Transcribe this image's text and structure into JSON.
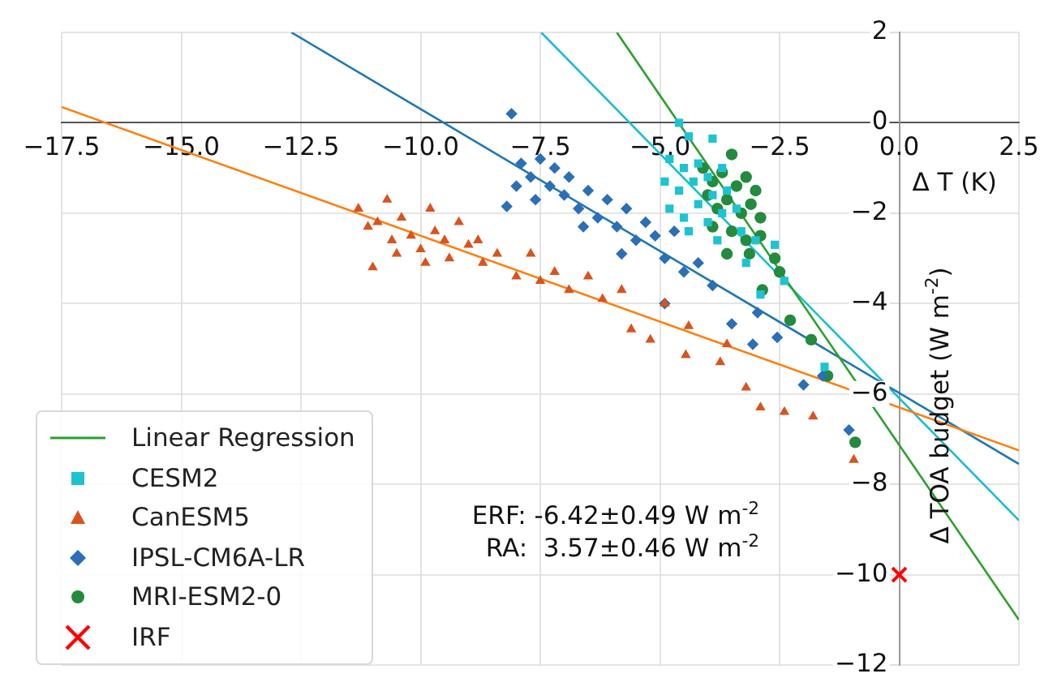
{
  "chart_data": {
    "type": "scatter",
    "xlabel": "Δ T (K)",
    "ylabel": "Δ TOA budget (W m$^{-2}$)",
    "xlim": [
      -17.5,
      2.5
    ],
    "ylim": [
      -12,
      2
    ],
    "xticks": [
      {
        "value": -17.5,
        "label": "−17.5"
      },
      {
        "value": -15,
        "label": "−15.0"
      },
      {
        "value": -12.5,
        "label": "−12.5"
      },
      {
        "value": -10,
        "label": "−10.0"
      },
      {
        "value": -7.5,
        "label": "−7.5"
      },
      {
        "value": -5,
        "label": "−5.0"
      },
      {
        "value": -2.5,
        "label": "−2.5"
      },
      {
        "value": 0,
        "label": "0.0"
      },
      {
        "value": 2.5,
        "label": "2.5"
      }
    ],
    "yticks": [
      {
        "value": -12,
        "label": "−12"
      },
      {
        "value": -10,
        "label": "−10"
      },
      {
        "value": -8,
        "label": "−8"
      },
      {
        "value": -6,
        "label": "−6"
      },
      {
        "value": -4,
        "label": "−4"
      },
      {
        "value": -2,
        "label": "−2"
      },
      0,
      2
    ],
    "grid": true,
    "legend": "bottom left",
    "annotations": [
      "ERF: -6.42±0.49 W m$^{-2}$",
      "RA:  3.57±0.46 W m$^{-2}$"
    ],
    "series": [
      {
        "name": "Linear Regression",
        "type": "line",
        "color": "#2ca02c",
        "x": [
          -5.9,
          2.5
        ],
        "values": [
          2,
          -11
        ]
      },
      {
        "name": "CESM2",
        "type": "scatter",
        "marker": "square",
        "color": "#1ec3d2",
        "x": [
          -4.6,
          -4.4,
          -3.9,
          -4.8,
          -4.5,
          -4.2,
          -4.9,
          -4.6,
          -4.3,
          -4.0,
          -3.7,
          -4.8,
          -4.5,
          -4.2,
          -3.9,
          -3.6,
          -4.4,
          -4.0,
          -3.7,
          -3.4,
          -3.8,
          -3.3,
          -3.0,
          -2.6,
          -3.2,
          -2.9,
          -2.4,
          -1.56
        ],
        "values": [
          0.0,
          -0.3,
          -0.35,
          -0.8,
          -1.0,
          -0.9,
          -1.3,
          -1.5,
          -1.3,
          -1.2,
          -1.0,
          -1.9,
          -2.1,
          -1.8,
          -1.6,
          -1.5,
          -2.4,
          -2.2,
          -2.0,
          -1.9,
          -2.6,
          -2.4,
          -2.6,
          -2.7,
          -3.1,
          -3.8,
          -3.5,
          -5.4
        ]
      },
      {
        "name": "CanESM5",
        "type": "scatter",
        "marker": "triangle",
        "color": "#d9531e",
        "x": [
          -11.3,
          -11.1,
          -10.9,
          -10.7,
          -10.6,
          -10.4,
          -10.2,
          -10.0,
          -9.8,
          -9.7,
          -9.5,
          -9.4,
          -9.2,
          -9.0,
          -8.8,
          -8.7,
          -11.0,
          -10.5,
          -9.9,
          -8.4,
          -8.0,
          -7.7,
          -7.5,
          -7.2,
          -6.9,
          -6.5,
          -6.2,
          -5.8,
          -5.6,
          -5.2,
          -4.9,
          -4.46,
          -4.4,
          -3.74,
          -3.6,
          -3.2,
          -2.9,
          -2.4,
          -1.8,
          -0.95
        ],
        "values": [
          -1.9,
          -2.3,
          -2.2,
          -1.7,
          -2.6,
          -2.1,
          -2.5,
          -2.8,
          -1.9,
          -2.4,
          -2.6,
          -3.0,
          -2.2,
          -2.7,
          -2.6,
          -3.1,
          -3.2,
          -2.9,
          -3.1,
          -2.9,
          -3.4,
          -2.9,
          -3.5,
          -3.3,
          -3.7,
          -3.4,
          -3.9,
          -3.7,
          -4.57,
          -4.8,
          -4.0,
          -5.14,
          -4.5,
          -5.3,
          -4.9,
          -5.86,
          -6.3,
          -6.4,
          -6.5,
          -7.46
        ]
      },
      {
        "name": "IPSL-CM6A-LR",
        "type": "scatter",
        "marker": "diamond",
        "color": "#2b6fb5",
        "x": [
          -8.1,
          -8.2,
          -7.9,
          -7.7,
          -7.5,
          -7.3,
          -7.2,
          -7.0,
          -6.9,
          -6.7,
          -6.5,
          -6.3,
          -6.1,
          -5.9,
          -5.7,
          -5.5,
          -5.3,
          -5.1,
          -4.9,
          -4.7,
          -6.6,
          -7.6,
          -8.0,
          -5.8,
          -4.5,
          -4.2,
          -3.9,
          -4.9,
          -3.5,
          -2.96,
          -3.06,
          -2.55,
          -2.0,
          -1.6,
          -1.05
        ],
        "values": [
          0.2,
          -1.85,
          -0.9,
          -1.2,
          -0.8,
          -1.4,
          -1.0,
          -1.6,
          -1.2,
          -1.9,
          -1.5,
          -2.1,
          -1.7,
          -2.3,
          -1.9,
          -2.6,
          -2.2,
          -2.5,
          -3.0,
          -2.4,
          -2.3,
          -1.7,
          -1.4,
          -2.9,
          -3.3,
          -3.1,
          -3.6,
          -4.0,
          -4.45,
          -4.2,
          -4.9,
          -4.75,
          -5.8,
          -5.6,
          -6.8
        ]
      },
      {
        "name": "MRI-ESM2-0",
        "type": "scatter",
        "marker": "circle",
        "color": "#238a3e",
        "x": [
          -4.1,
          -3.9,
          -3.7,
          -3.5,
          -3.4,
          -3.2,
          -3.0,
          -4.0,
          -3.8,
          -3.6,
          -3.3,
          -3.1,
          -2.9,
          -3.9,
          -3.5,
          -3.2,
          -2.9,
          -3.6,
          -3.13,
          -2.6,
          -2.86,
          -2.5,
          -2.28,
          -1.84,
          -1.5,
          -0.92
        ],
        "values": [
          -1.0,
          -1.3,
          -1.1,
          -0.7,
          -1.4,
          -1.2,
          -1.5,
          -1.6,
          -1.9,
          -1.7,
          -2.0,
          -1.8,
          -2.1,
          -2.3,
          -2.4,
          -2.6,
          -2.5,
          -2.9,
          -2.9,
          -3.0,
          -3.7,
          -3.3,
          -4.37,
          -4.8,
          -5.6,
          -7.07
        ]
      },
      {
        "type": "line",
        "color": "#ff7f0e",
        "x": [
          -17.5,
          2.5
        ],
        "values": [
          0.35,
          -7.25
        ]
      },
      {
        "type": "line",
        "color": "#1f77b4",
        "x": [
          -12.7,
          2.5
        ],
        "values": [
          2,
          -7.55
        ]
      },
      {
        "type": "line",
        "color": "#17becf",
        "x": [
          -7.48,
          2.5
        ],
        "values": [
          2,
          -8.8
        ]
      },
      {
        "name": "IRF",
        "type": "scatter",
        "marker": "cross",
        "color": "#ff0000",
        "x": [
          0
        ],
        "values": [
          -10
        ]
      }
    ]
  }
}
